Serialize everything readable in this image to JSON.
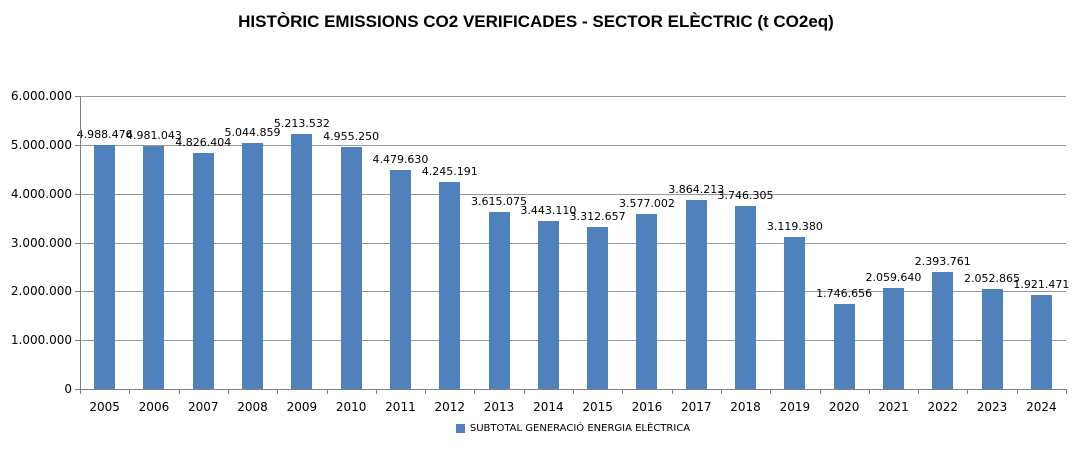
{
  "title": "HISTÒRIC EMISSIONS CO2 VERIFICADES - SECTOR ELÈCTRIC (t CO2eq)",
  "legend": {
    "label": "SUBTOTAL GENERACIÓ ENERGIA ELÈCTRICA",
    "marker_color": "#4F81BD"
  },
  "colors": {
    "bar": "#4F81BD",
    "gridline": "#989898",
    "axis": "#808080",
    "text": "#000000",
    "background": "#ffffff"
  },
  "chart_data": {
    "type": "bar",
    "title": "HISTÒRIC EMISSIONS CO2 VERIFICADES - SECTOR ELÈCTRIC (t CO2eq)",
    "series_name": "SUBTOTAL GENERACIÓ ENERGIA ELÈCTRICA",
    "categories": [
      "2005",
      "2006",
      "2007",
      "2008",
      "2009",
      "2010",
      "2011",
      "2012",
      "2013",
      "2014",
      "2015",
      "2016",
      "2017",
      "2018",
      "2019",
      "2020",
      "2021",
      "2022",
      "2023",
      "2024"
    ],
    "values": [
      4988476,
      4981043,
      4826404,
      5044859,
      5213532,
      4955250,
      4479630,
      4245191,
      3615075,
      3443110,
      3312657,
      3577002,
      3864213,
      3746305,
      3119380,
      1746656,
      2059640,
      2393761,
      2052865,
      1921471
    ],
    "value_labels": [
      "4.988.476",
      "4.981.043",
      "4.826.404",
      "5.044.859",
      "5.213.532",
      "4.955.250",
      "4.479.630",
      "4.245.191",
      "3.615.075",
      "3.443.110",
      "3.312.657",
      "3.577.002",
      "3.864.213",
      "3.746.305",
      "3.119.380",
      "1.746.656",
      "2.059.640",
      "2.393.761",
      "2.052.865",
      "1.921.471"
    ],
    "xlabel": "",
    "ylabel": "",
    "ylim": [
      0,
      6000000
    ],
    "y_tick_labels": [
      "0",
      "1.000.000",
      "2.000.000",
      "3.000.000",
      "4.000.000",
      "5.000.000",
      "6.000.000"
    ],
    "grid": "horizontal",
    "legend_position": "bottom",
    "data_labels": "above-bars"
  }
}
